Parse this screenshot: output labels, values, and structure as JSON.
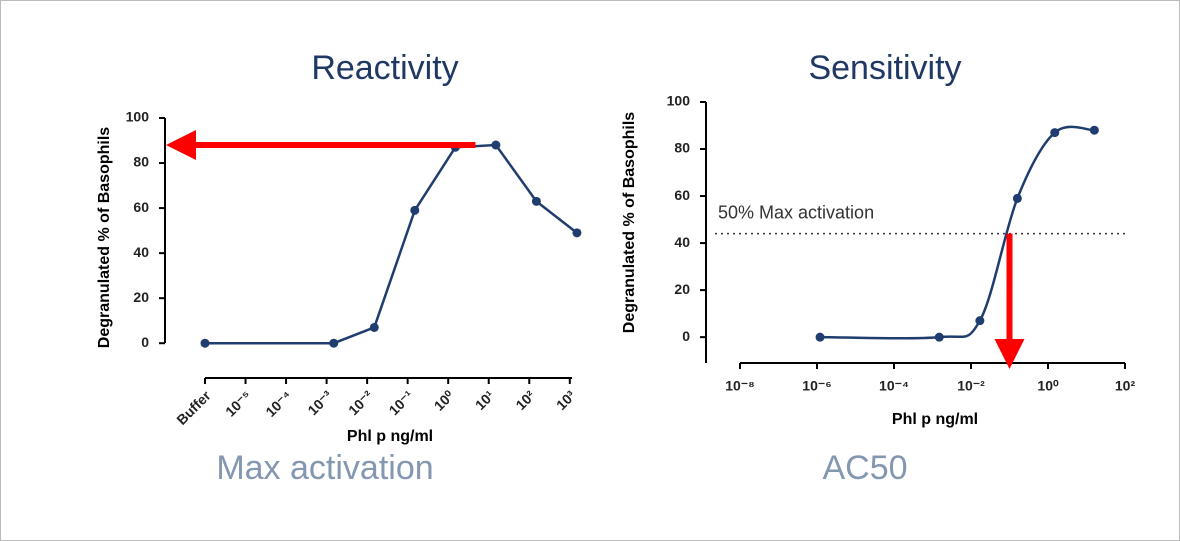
{
  "chart_data": [
    {
      "type": "line",
      "title": "Reactivity",
      "subtitle": "Max activation",
      "y_label": "Degranulated %  of Basophils",
      "x_label": "Phl p ng/ml",
      "log_x": true,
      "color": "#1f3d6e",
      "x": [
        1e-06,
        0.0015,
        0.015,
        0.15,
        1.5,
        15,
        150,
        1500
      ],
      "values": [
        0,
        0,
        7,
        59,
        87,
        88,
        63,
        49
      ],
      "xlim": [
        1e-06,
        2000
      ],
      "xticks": [
        {
          "value": 1e-06,
          "label": "Buffer"
        },
        {
          "value": 1e-05,
          "label": "10⁻⁵"
        },
        {
          "value": 0.0001,
          "label": "10⁻⁴"
        },
        {
          "value": 0.001,
          "label": "10⁻³"
        },
        {
          "value": 0.01,
          "label": "10⁻²"
        },
        {
          "value": 0.1,
          "label": "10⁻¹"
        },
        {
          "value": 1,
          "label": "10⁰"
        },
        {
          "value": 10,
          "label": "10¹"
        },
        {
          "value": 100,
          "label": "10²"
        },
        {
          "value": 1000,
          "label": "10³"
        }
      ],
      "ylim": [
        -15,
        100
      ],
      "yticks": [
        0,
        20,
        40,
        60,
        80,
        100
      ],
      "arrow": {
        "y": 88,
        "x": 4.7,
        "color": "#ff0000"
      }
    },
    {
      "type": "curve",
      "title": "Sensitivity",
      "subtitle": "AC50",
      "y_label": "Degranulated % of Basophils",
      "x_label": "Phl p ng/ml",
      "log_x": true,
      "color": "#1f3d6e",
      "x": [
        1.2e-06,
        0.0015,
        0.017,
        0.16,
        1.5,
        16
      ],
      "values": [
        0,
        0,
        7,
        59,
        87,
        88
      ],
      "xlim": [
        1e-08,
        100
      ],
      "xticks": [
        {
          "value": 1e-08,
          "label": "10⁻⁸"
        },
        {
          "value": 1e-06,
          "label": "10⁻⁶"
        },
        {
          "value": 0.0001,
          "label": "10⁻⁴"
        },
        {
          "value": 0.01,
          "label": "10⁻²"
        },
        {
          "value": 1,
          "label": "10⁰"
        },
        {
          "value": 100,
          "label": "10²"
        }
      ],
      "ylim": [
        -11,
        100
      ],
      "yticks": [
        0,
        20,
        40,
        60,
        80,
        100
      ],
      "reference_line": {
        "y": 44,
        "label": "50% Max activation"
      },
      "arrow": {
        "x": 0.1,
        "y": 44,
        "color": "#ff0000"
      }
    }
  ]
}
